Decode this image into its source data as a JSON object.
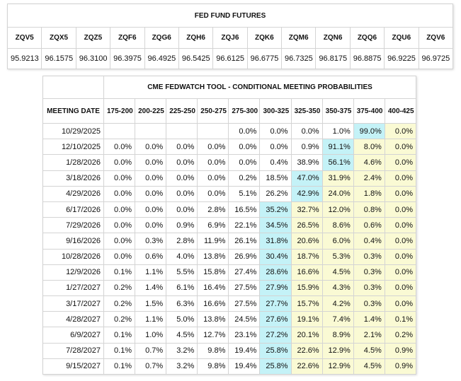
{
  "futures": {
    "title": "FED FUND FUTURES",
    "codes": [
      "ZQV5",
      "ZQX5",
      "ZQZ5",
      "ZQF6",
      "ZQG6",
      "ZQH6",
      "ZQJ6",
      "ZQK6",
      "ZQM6",
      "ZQN6",
      "ZQQ6",
      "ZQU6",
      "ZQV6"
    ],
    "prices": [
      "95.9213",
      "96.1575",
      "96.3100",
      "96.3975",
      "96.4925",
      "96.5425",
      "96.6125",
      "96.6775",
      "96.7325",
      "96.8175",
      "96.8875",
      "96.9225",
      "96.9725"
    ]
  },
  "fedwatch": {
    "title": "CME FEDWATCH TOOL - CONDITIONAL MEETING PROBABILITIES",
    "headers": [
      "MEETING DATE",
      "175-200",
      "200-225",
      "225-250",
      "250-275",
      "275-300",
      "300-325",
      "325-350",
      "350-375",
      "375-400",
      "400-425"
    ],
    "rows": [
      [
        "10/29/2025",
        null,
        null,
        null,
        null,
        "0.0%",
        "0.0%",
        "0.0%",
        "1.0%",
        "99.0%",
        "0.0%"
      ],
      [
        "12/10/2025",
        "0.0%",
        "0.0%",
        "0.0%",
        "0.0%",
        "0.0%",
        "0.0%",
        "0.9%",
        "91.1%",
        "8.0%",
        "0.0%"
      ],
      [
        "1/28/2026",
        "0.0%",
        "0.0%",
        "0.0%",
        "0.0%",
        "0.0%",
        "0.4%",
        "38.9%",
        "56.1%",
        "4.6%",
        "0.0%"
      ],
      [
        "3/18/2026",
        "0.0%",
        "0.0%",
        "0.0%",
        "0.0%",
        "0.2%",
        "18.5%",
        "47.0%",
        "31.9%",
        "2.4%",
        "0.0%"
      ],
      [
        "4/29/2026",
        "0.0%",
        "0.0%",
        "0.0%",
        "0.0%",
        "5.1%",
        "26.2%",
        "42.9%",
        "24.0%",
        "1.8%",
        "0.0%"
      ],
      [
        "6/17/2026",
        "0.0%",
        "0.0%",
        "0.0%",
        "2.8%",
        "16.5%",
        "35.2%",
        "32.7%",
        "12.0%",
        "0.8%",
        "0.0%"
      ],
      [
        "7/29/2026",
        "0.0%",
        "0.0%",
        "0.9%",
        "6.9%",
        "22.1%",
        "34.5%",
        "26.5%",
        "8.6%",
        "0.6%",
        "0.0%"
      ],
      [
        "9/16/2026",
        "0.0%",
        "0.3%",
        "2.8%",
        "11.9%",
        "26.1%",
        "31.8%",
        "20.6%",
        "6.0%",
        "0.4%",
        "0.0%"
      ],
      [
        "10/28/2026",
        "0.0%",
        "0.6%",
        "4.0%",
        "13.8%",
        "26.9%",
        "30.4%",
        "18.7%",
        "5.3%",
        "0.3%",
        "0.0%"
      ],
      [
        "12/9/2026",
        "0.1%",
        "1.1%",
        "5.5%",
        "15.8%",
        "27.4%",
        "28.6%",
        "16.6%",
        "4.5%",
        "0.3%",
        "0.0%"
      ],
      [
        "1/27/2027",
        "0.2%",
        "1.4%",
        "6.1%",
        "16.4%",
        "27.5%",
        "27.9%",
        "15.9%",
        "4.3%",
        "0.3%",
        "0.0%"
      ],
      [
        "3/17/2027",
        "0.2%",
        "1.5%",
        "6.3%",
        "16.6%",
        "27.5%",
        "27.7%",
        "15.7%",
        "4.2%",
        "0.3%",
        "0.0%"
      ],
      [
        "4/28/2027",
        "0.2%",
        "1.1%",
        "5.0%",
        "13.8%",
        "24.5%",
        "27.6%",
        "19.1%",
        "7.4%",
        "1.4%",
        "0.1%"
      ],
      [
        "6/9/2027",
        "0.1%",
        "1.0%",
        "4.5%",
        "12.7%",
        "23.1%",
        "27.2%",
        "20.1%",
        "8.9%",
        "2.1%",
        "0.2%"
      ],
      [
        "7/28/2027",
        "0.1%",
        "0.7%",
        "3.2%",
        "9.8%",
        "19.4%",
        "25.8%",
        "22.6%",
        "12.9%",
        "4.5%",
        "0.9%"
      ],
      [
        "9/15/2027",
        "0.1%",
        "0.7%",
        "3.2%",
        "9.8%",
        "19.4%",
        "25.8%",
        "22.6%",
        "12.9%",
        "4.5%",
        "0.9%"
      ]
    ]
  }
}
